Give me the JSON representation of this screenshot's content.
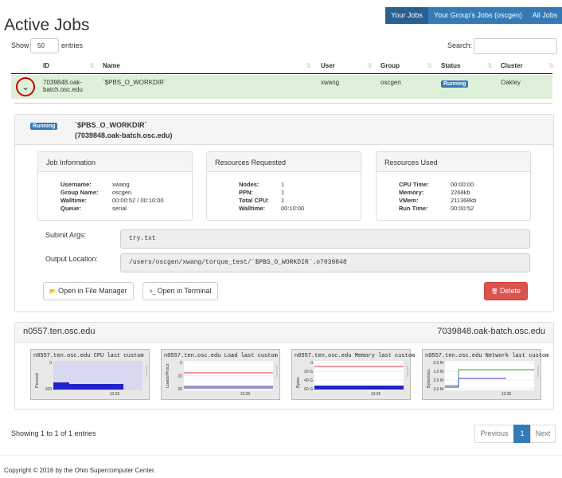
{
  "header": {
    "title": "Active Jobs",
    "tabs": [
      "Your Jobs",
      "Your Group's Jobs (oscgen)",
      "All Jobs"
    ]
  },
  "controls": {
    "show": "Show",
    "entries_value": "50",
    "entries": "entries",
    "search": "Search:"
  },
  "table": {
    "columns": [
      "ID",
      "Name",
      "User",
      "Group",
      "Status",
      "Cluster"
    ],
    "rows": [
      [
        "7039848.oak-batch.osc.edu",
        "`$PBS_O_WORKDIR`",
        "xwang",
        "oscgen",
        "Running",
        "Oakley"
      ]
    ]
  },
  "detail": {
    "status": "Running",
    "name": "`$PBS_O_WORKDIR`",
    "id": "(7039848.oak-batch.osc.edu)",
    "panels": [
      {
        "title": "Job Information",
        "items": [
          [
            "Username:",
            "xwang"
          ],
          [
            "Group Name:",
            "oscgen"
          ],
          [
            "Walltime:",
            "00:00:52 / 00:10:00"
          ],
          [
            "Queue:",
            "serial"
          ]
        ]
      },
      {
        "title": "Resources Requested",
        "items": [
          [
            "Nodes:",
            "1"
          ],
          [
            "PPN:",
            "1"
          ],
          [
            "Total CPU:",
            "1"
          ],
          [
            "Walltime:",
            "00:10:00"
          ]
        ]
      },
      {
        "title": "Resources Used",
        "items": [
          [
            "CPU Time:",
            "00:00:00"
          ],
          [
            "Memory:",
            "2268kb"
          ],
          [
            "VMem:",
            "211368kb"
          ],
          [
            "Run Time:",
            "00:00:52"
          ]
        ]
      }
    ],
    "submit_args": {
      "label": "Submit Args:",
      "value": "try.txt"
    },
    "output_location": {
      "label": "Output Location:",
      "value": "/users/oscgen/xwang/torque_test/`$PBS_O_WORKDIR`.o7039848"
    },
    "buttons": [
      "Open in File Manager",
      "Open in Terminal",
      "Delete"
    ]
  },
  "node": {
    "host": "n0557.ten.osc.edu",
    "job": "7039848.oak-batch.osc.edu",
    "graphs": [
      {
        "title": "n0557.ten.osc.edu CPU last custom",
        "ylabel": "Percent",
        "yticks": [
          "100",
          "0"
        ],
        "xtick": "13:35"
      },
      {
        "title": "n0557.ten.osc.edu Load last custom",
        "ylabel": "Loads/Procs",
        "yticks": [
          "20",
          "10",
          "0"
        ],
        "xtick": "13:35"
      },
      {
        "title": "n0557.ten.osc.edu Memory last custom",
        "ylabel": "Bytes",
        "yticks": [
          "60 G",
          "40 G",
          "20 G",
          "0"
        ],
        "xtick": "13:35"
      },
      {
        "title": "n0557.ten.osc.edu Network last custom",
        "ylabel": "Bytes/sec",
        "yticks": [
          "3.0 M",
          "2.0 M",
          "1.0 M",
          "0.0 M"
        ],
        "xtick": "13:35"
      }
    ]
  },
  "footer": {
    "info": "Showing 1 to 1 of 1 entries",
    "pagination": [
      "Previous",
      "1",
      "Next"
    ],
    "copyright": "Copyright © 2016 by the Ohio Supercomputer Center."
  }
}
